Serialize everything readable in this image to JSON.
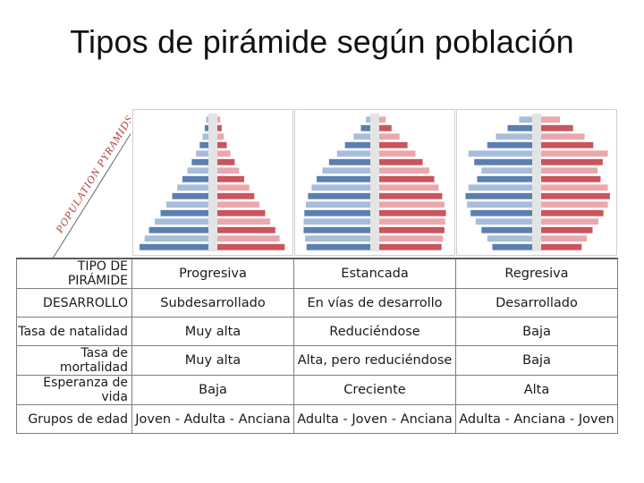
{
  "slide_title": "Tipos de pirámide según población",
  "corner_label": "POPULATION PYRAMIDS",
  "colors": {
    "male": "#5b7fb0",
    "male_light": "#a7bddb",
    "female": "#c9555d",
    "female_light": "#e9a8ac"
  },
  "pyramids": [
    {
      "name": "Progresiva",
      "male": [
        95,
        88,
        82,
        74,
        66,
        58,
        50,
        43,
        36,
        29,
        23,
        17,
        12,
        8,
        5,
        3
      ],
      "female": [
        93,
        86,
        80,
        73,
        66,
        58,
        51,
        44,
        37,
        30,
        24,
        18,
        13,
        9,
        6,
        4
      ]
    },
    {
      "name": "Estancada",
      "male": [
        88,
        90,
        92,
        92,
        91,
        89,
        86,
        81,
        74,
        66,
        57,
        46,
        35,
        23,
        13,
        6
      ],
      "female": [
        86,
        88,
        90,
        91,
        92,
        90,
        87,
        82,
        76,
        69,
        60,
        50,
        39,
        28,
        17,
        9
      ]
    },
    {
      "name": "Regresiva",
      "male": [
        55,
        62,
        70,
        78,
        85,
        90,
        92,
        88,
        76,
        70,
        80,
        88,
        62,
        50,
        34,
        18
      ],
      "female": [
        56,
        63,
        71,
        79,
        86,
        92,
        95,
        92,
        82,
        78,
        85,
        92,
        72,
        60,
        44,
        26
      ]
    }
  ],
  "table": {
    "headers": [
      "TIPO DE PIRÁMIDE",
      "Progresiva",
      "Estancada",
      "Regresiva"
    ],
    "rows": [
      {
        "label": "DESARROLLO",
        "values": [
          "Subdesarrollado",
          "En vías de desarrollo",
          "Desarrollado"
        ]
      },
      {
        "label": "Tasa de natalidad",
        "values": [
          "Muy alta",
          "Reduciéndose",
          "Baja"
        ]
      },
      {
        "label": "Tasa de mortalidad",
        "values": [
          "Muy alta",
          "Alta, pero reduciéndose",
          "Baja"
        ]
      },
      {
        "label": "Esperanza de vida",
        "values": [
          "Baja",
          "Creciente",
          "Alta"
        ]
      },
      {
        "label": "Grupos de edad",
        "values": [
          "Joven - Adulta - Anciana",
          "Adulta - Joven - Anciana",
          "Adulta - Anciana - Joven"
        ]
      }
    ]
  }
}
